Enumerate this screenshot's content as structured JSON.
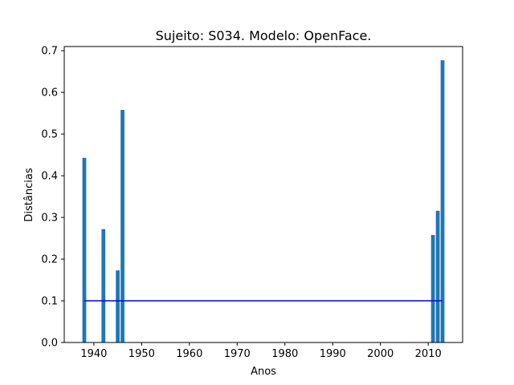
{
  "chart_data": {
    "type": "bar",
    "title": "Sujeito: S034. Modelo: OpenFace.",
    "xlabel": "Anos",
    "ylabel": "Distâncias",
    "xlim": [
      1933.8,
      2017.2
    ],
    "ylim": [
      0,
      0.71
    ],
    "xticks": [
      1940,
      1950,
      1960,
      1970,
      1980,
      1990,
      2000,
      2010
    ],
    "yticks": [
      0.0,
      0.1,
      0.2,
      0.3,
      0.4,
      0.5,
      0.6,
      0.7
    ],
    "bar_width_years": 0.8,
    "bar_color": "#1f77b4",
    "grid": false,
    "bars": [
      {
        "x": 1938,
        "y": 0.443
      },
      {
        "x": 1942,
        "y": 0.272
      },
      {
        "x": 1945,
        "y": 0.173
      },
      {
        "x": 1946,
        "y": 0.558
      },
      {
        "x": 2011,
        "y": 0.258
      },
      {
        "x": 2012,
        "y": 0.316
      },
      {
        "x": 2013,
        "y": 0.677
      }
    ],
    "threshold_line": {
      "x_start": 1938,
      "x_end": 2013,
      "y": 0.1,
      "color": "#0000ff"
    }
  }
}
